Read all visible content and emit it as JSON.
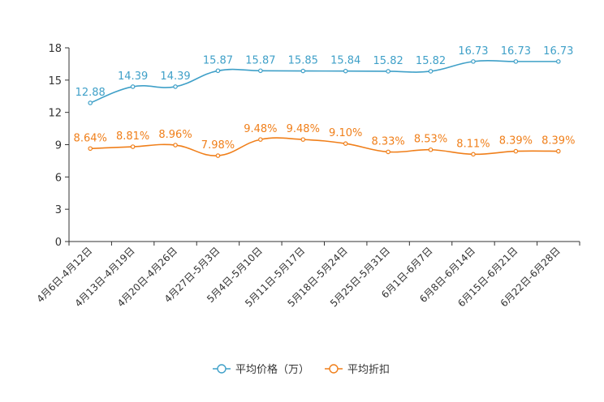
{
  "chart_data": {
    "type": "line",
    "categories": [
      "4月6日-4月12日",
      "4月13日-4月19日",
      "4月20日-4月26日",
      "4月27日-5月3日",
      "5月4日-5月10日",
      "5月11日-5月17日",
      "5月18日-5月24日",
      "5月25日-5月31日",
      "6月1日-6月7日",
      "6月8日-6月14日",
      "6月15日-6月21日",
      "6月22日-6月28日"
    ],
    "series": [
      {
        "name": "平均价格（万）",
        "color": "#3fa0c8",
        "values": [
          12.88,
          14.39,
          14.39,
          15.87,
          15.87,
          15.85,
          15.84,
          15.82,
          15.82,
          16.73,
          16.73,
          16.73
        ],
        "labels": [
          "12.88",
          "14.39",
          "14.39",
          "15.87",
          "15.87",
          "15.85",
          "15.84",
          "15.82",
          "15.82",
          "16.73",
          "16.73",
          "16.73"
        ]
      },
      {
        "name": "平均折扣",
        "color": "#f07f1a",
        "values": [
          8.64,
          8.81,
          8.96,
          7.98,
          9.48,
          9.48,
          9.1,
          8.33,
          8.53,
          8.11,
          8.39,
          8.39
        ],
        "labels": [
          "8.64%",
          "8.81%",
          "8.96%",
          "7.98%",
          "9.48%",
          "9.48%",
          "9.10%",
          "8.33%",
          "8.53%",
          "8.11%",
          "8.39%",
          "8.39%"
        ]
      }
    ],
    "y_ticks": [
      "0",
      "3",
      "6",
      "9",
      "12",
      "15",
      "18"
    ],
    "ylim": [
      0,
      18
    ],
    "legend_position": "bottom-center"
  }
}
